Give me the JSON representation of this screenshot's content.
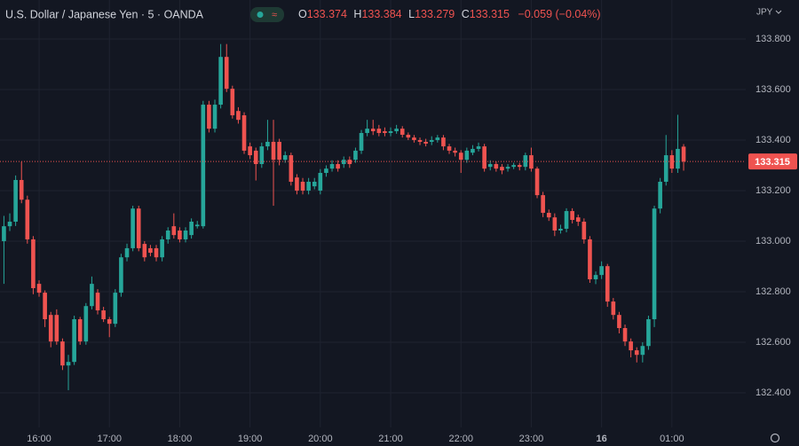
{
  "header": {
    "title": "U.S. Dollar / Japanese Yen · 5 · OANDA",
    "ohlc_labels": [
      "O",
      "H",
      "L",
      "C"
    ],
    "change": "−0.059 (−0.04%)",
    "currency": "JPY"
  },
  "chart_data": {
    "type": "candlestick",
    "up_color": "#26a69a",
    "down_color": "#ef5350",
    "grid": true,
    "open": [
      133.0,
      133.059,
      133.077,
      133.242,
      133.164,
      133.007,
      132.831,
      132.796,
      132.708,
      132.708,
      132.603,
      132.508,
      132.522,
      132.691,
      132.603,
      132.743,
      132.796,
      132.726,
      132.691,
      132.673,
      132.796,
      132.936,
      132.972,
      133.129,
      132.989,
      132.972,
      132.972,
      132.936,
      133.007,
      133.059,
      133.042,
      133.007,
      133.024,
      133.059,
      133.059,
      133.54,
      133.445,
      133.54,
      133.729,
      133.603,
      133.515,
      133.498,
      133.375,
      133.358,
      133.305,
      133.375,
      133.393,
      133.393,
      133.322,
      133.34,
      133.252,
      133.235,
      133.2,
      133.217,
      133.2,
      133.27,
      133.287,
      133.305,
      133.305,
      133.322,
      133.322,
      133.358,
      133.428,
      133.445,
      133.445,
      133.435,
      133.428,
      133.435,
      133.445,
      133.421,
      133.41,
      133.4,
      133.393,
      133.393,
      133.4,
      133.41,
      133.375,
      133.358,
      133.35,
      133.322,
      133.35,
      133.365,
      133.375,
      133.294,
      133.305,
      133.294,
      133.287,
      133.294,
      133.301,
      133.294,
      133.34,
      133.287,
      133.182,
      133.112,
      133.094,
      133.042,
      133.049,
      133.119,
      133.094,
      133.077,
      133.007,
      132.849,
      132.866,
      132.901,
      132.761,
      132.708,
      132.656,
      132.603,
      132.568,
      132.55,
      132.585,
      132.691,
      133.129,
      133.235,
      133.34,
      133.287,
      133.374
    ],
    "high": [
      133.1,
      133.11,
      133.26,
      133.315,
      133.18,
      133.02,
      132.845,
      132.805,
      132.72,
      132.73,
      132.615,
      132.55,
      132.705,
      132.7,
      132.755,
      132.86,
      132.81,
      132.74,
      132.7,
      132.81,
      132.95,
      132.99,
      133.14,
      133.14,
      133.0,
      132.985,
      132.985,
      133.02,
      133.055,
      133.11,
      133.055,
      133.055,
      133.09,
      133.08,
      133.555,
      133.555,
      133.56,
      133.78,
      133.78,
      133.615,
      133.53,
      133.51,
      133.39,
      133.37,
      133.39,
      133.48,
      133.48,
      133.405,
      133.355,
      133.35,
      133.265,
      133.25,
      133.25,
      133.25,
      133.285,
      133.3,
      133.32,
      133.32,
      133.335,
      133.335,
      133.37,
      133.44,
      133.48,
      133.48,
      133.46,
      133.45,
      133.45,
      133.46,
      133.455,
      133.43,
      133.42,
      133.41,
      133.405,
      133.415,
      133.42,
      133.42,
      133.385,
      133.37,
      133.36,
      133.37,
      133.38,
      133.39,
      133.385,
      133.32,
      133.315,
      133.305,
      133.305,
      133.31,
      133.31,
      133.35,
      133.37,
      133.295,
      133.195,
      133.125,
      133.11,
      133.065,
      133.13,
      133.13,
      133.105,
      133.09,
      133.02,
      132.88,
      132.92,
      132.91,
      132.775,
      132.72,
      132.67,
      132.615,
      132.58,
      132.6,
      132.705,
      133.14,
      133.25,
      133.42,
      133.36,
      133.5,
      133.384
    ],
    "low": [
      132.831,
      133.04,
      133.06,
      133.15,
      132.99,
      132.79,
      132.78,
      132.66,
      132.58,
      132.59,
      132.49,
      132.41,
      132.51,
      132.59,
      132.59,
      132.73,
      132.71,
      132.68,
      132.62,
      132.66,
      132.78,
      132.92,
      132.96,
      132.96,
      132.92,
      132.94,
      132.92,
      132.92,
      132.99,
      133.01,
      132.995,
      132.995,
      133.01,
      133.05,
      133.05,
      133.43,
      133.43,
      133.525,
      133.59,
      133.485,
      133.465,
      133.345,
      133.325,
      133.24,
      133.29,
      133.36,
      133.14,
      133.3,
      133.31,
      133.22,
      133.185,
      133.185,
      133.185,
      133.205,
      133.185,
      133.255,
      133.275,
      133.275,
      133.29,
      133.29,
      133.31,
      133.345,
      133.415,
      133.42,
      133.415,
      133.415,
      133.415,
      133.425,
      133.41,
      133.4,
      133.39,
      133.38,
      133.375,
      133.38,
      133.39,
      133.36,
      133.345,
      133.335,
      133.27,
      133.31,
      133.34,
      133.355,
      133.275,
      133.28,
      133.275,
      133.265,
      133.275,
      133.285,
      133.28,
      133.28,
      133.275,
      133.17,
      133.095,
      133.08,
      133.02,
      133.03,
      133.035,
      133.07,
      133.06,
      132.99,
      132.835,
      132.83,
      132.85,
      132.74,
      132.69,
      132.635,
      132.585,
      132.54,
      132.52,
      132.52,
      132.57,
      132.66,
      133.11,
      133.22,
      133.27,
      133.27,
      133.279
    ],
    "close": [
      133.059,
      133.077,
      133.242,
      133.164,
      133.007,
      132.814,
      132.796,
      132.691,
      132.603,
      132.603,
      132.508,
      132.522,
      132.691,
      132.603,
      132.743,
      132.831,
      132.726,
      132.691,
      132.673,
      132.796,
      132.936,
      132.972,
      133.129,
      132.972,
      132.936,
      132.954,
      132.936,
      133.007,
      133.042,
      133.024,
      133.007,
      133.042,
      133.077,
      133.065,
      133.54,
      133.445,
      133.54,
      133.729,
      133.603,
      133.498,
      133.48,
      133.358,
      133.34,
      133.305,
      133.375,
      133.393,
      133.322,
      133.322,
      133.34,
      133.235,
      133.2,
      133.2,
      133.235,
      133.235,
      133.27,
      133.287,
      133.305,
      133.287,
      133.322,
      133.305,
      133.358,
      133.428,
      133.445,
      133.435,
      133.428,
      133.428,
      133.435,
      133.445,
      133.421,
      133.41,
      133.4,
      133.393,
      133.386,
      133.4,
      133.41,
      133.375,
      133.358,
      133.35,
      133.322,
      133.358,
      133.365,
      133.375,
      133.287,
      133.305,
      133.287,
      133.28,
      133.294,
      133.301,
      133.294,
      133.34,
      133.287,
      133.182,
      133.112,
      133.094,
      133.042,
      133.049,
      133.119,
      133.084,
      133.077,
      133.007,
      132.849,
      132.866,
      132.901,
      132.761,
      132.708,
      132.656,
      132.603,
      132.568,
      132.55,
      132.585,
      132.691,
      133.129,
      133.235,
      133.34,
      133.287,
      133.365,
      133.315
    ],
    "xlim": [
      -0.67,
      126.6
    ],
    "xticks": [
      {
        "value": 6,
        "label": "16:00"
      },
      {
        "value": 18,
        "label": "17:00"
      },
      {
        "value": 30,
        "label": "18:00"
      },
      {
        "value": 42,
        "label": "19:00"
      },
      {
        "value": 54,
        "label": "20:00"
      },
      {
        "value": 66,
        "label": "21:00"
      },
      {
        "value": 78,
        "label": "22:00"
      },
      {
        "value": 90,
        "label": "23:00"
      },
      {
        "value": 102,
        "label": "16"
      },
      {
        "value": 114,
        "label": "01:00"
      }
    ],
    "ylim": [
      132.263,
      133.856
    ],
    "yticks": [
      {
        "value": 132.4,
        "label": "132.400"
      },
      {
        "value": 132.6,
        "label": "132.600"
      },
      {
        "value": 132.8,
        "label": "132.800"
      },
      {
        "value": 133.0,
        "label": "133.000"
      },
      {
        "value": 133.2,
        "label": "133.200"
      },
      {
        "value": 133.4,
        "label": "133.400"
      },
      {
        "value": 133.6,
        "label": "133.600"
      },
      {
        "value": 133.8,
        "label": "133.800"
      }
    ]
  }
}
